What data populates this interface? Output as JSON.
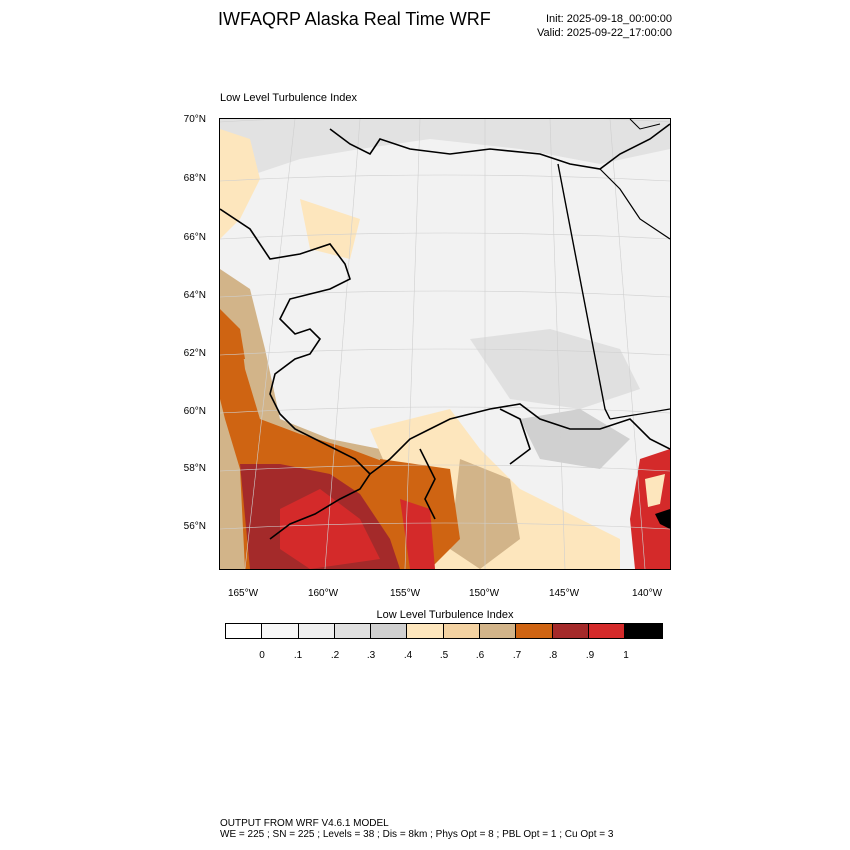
{
  "title": "IWFAQRP Alaska Real Time WRF",
  "init": "Init: 2025-09-18_00:00:00",
  "valid": "Valid: 2025-09-22_17:00:00",
  "map_label": "Low Level Turbulence Index",
  "lat_labels": [
    "70°N",
    "68°N",
    "66°N",
    "64°N",
    "62°N",
    "60°N",
    "58°N",
    "56°N"
  ],
  "lon_labels": [
    "165°W",
    "160°W",
    "155°W",
    "150°W",
    "145°W",
    "140°W"
  ],
  "colorbar": {
    "title": "Low Level Turbulence Index",
    "colors": [
      "#ffffff",
      "#f7f7f7",
      "#efefef",
      "#e0e0e0",
      "#d0d0d0",
      "#fde6bd",
      "#f3d2a2",
      "#d2b489",
      "#cf6412",
      "#a42a2a",
      "#d42a2a",
      "#000000"
    ],
    "ticks": [
      "0",
      ".1",
      ".2",
      ".3",
      ".4",
      ".5",
      ".6",
      ".7",
      ".8",
      ".9",
      "1"
    ]
  },
  "footer_line1": "OUTPUT FROM WRF V4.6.1 MODEL",
  "footer_line2": "WE = 225 ; SN = 225 ; Levels = 38 ; Dis = 8km ; Phys Opt = 8 ; PBL Opt = 1 ; Cu Opt = 3"
}
